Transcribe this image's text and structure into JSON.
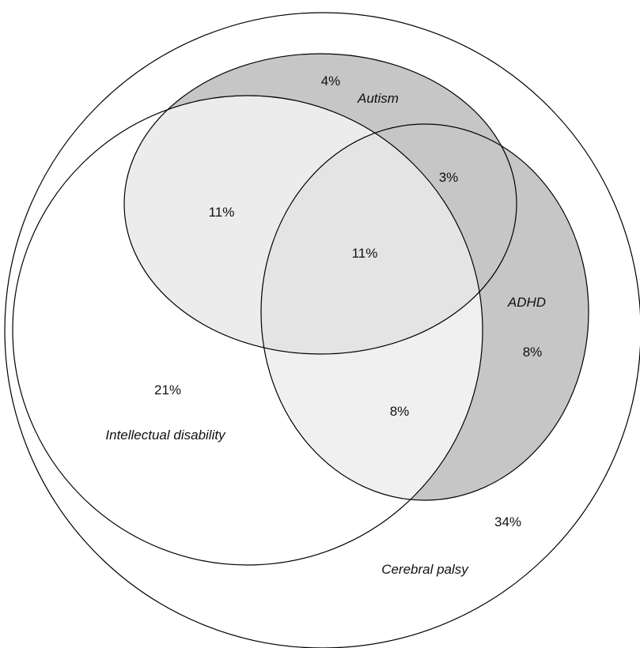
{
  "colors": {
    "background": "#ffffff",
    "id_only": "#ffffff",
    "id_with_autism": "#ececec",
    "autism_only": "#c6c6c6",
    "adhd_overlap_light": "#e4e4e4",
    "adhd_only": "#c6c6c6",
    "id_with_adhd": "#f0f0f0",
    "outline": "#000000"
  },
  "sets": {
    "cerebral_palsy": "Cerebral palsy",
    "intellectual_disability": "Intellectual disability",
    "autism": "Autism",
    "adhd": "ADHD"
  },
  "regions": {
    "autism_only": "4%",
    "id_autism": "11%",
    "autism_adhd": "3%",
    "id_autism_adhd": "11%",
    "adhd_only": "8%",
    "id_only": "21%",
    "id_adhd": "8%",
    "cp_only": "34%"
  }
}
